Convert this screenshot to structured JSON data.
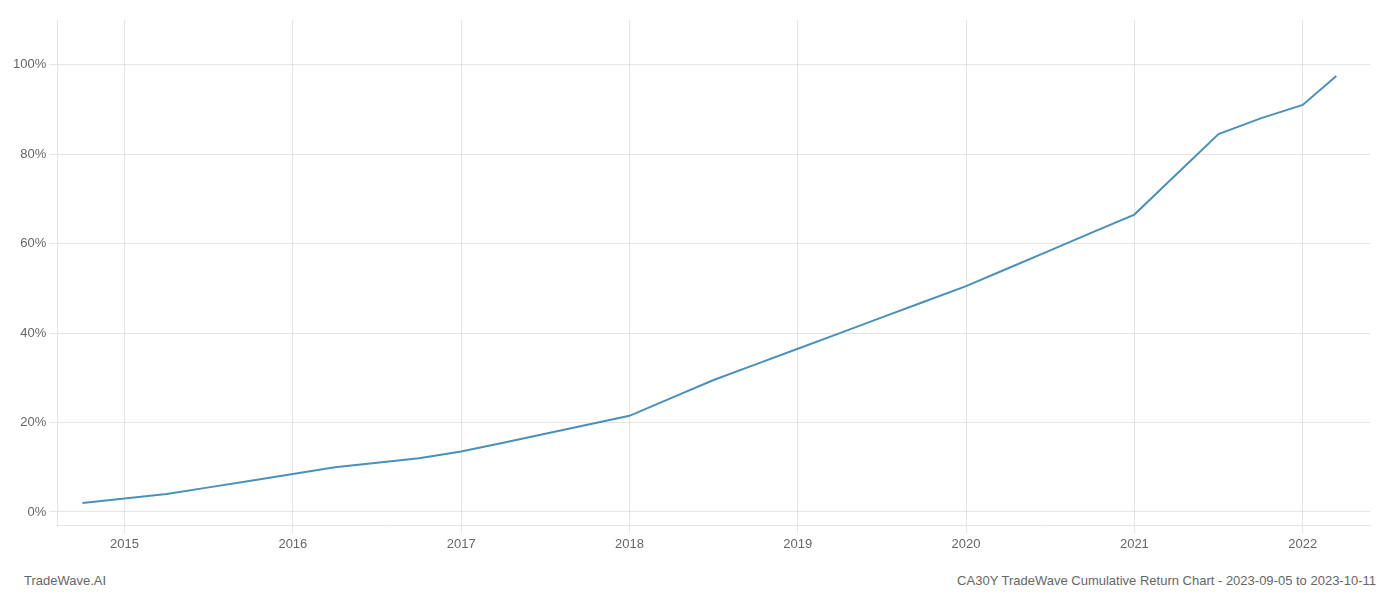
{
  "chart_data": {
    "type": "line",
    "title": "CA30Y TradeWave Cumulative Return Chart - 2023-09-05 to 2023-10-11",
    "annotations": [
      "TradeWave.AI"
    ],
    "x": [
      2014.75,
      2015.0,
      2015.25,
      2015.5,
      2015.75,
      2016.0,
      2016.25,
      2016.5,
      2016.75,
      2017.0,
      2017.25,
      2017.5,
      2017.75,
      2018.0,
      2018.25,
      2018.5,
      2018.75,
      2019.0,
      2019.25,
      2019.5,
      2019.75,
      2020.0,
      2020.25,
      2020.5,
      2020.75,
      2021.0,
      2021.25,
      2021.5,
      2021.75,
      2022.0,
      2022.2
    ],
    "values": [
      0.02,
      0.03,
      0.04,
      0.055,
      0.07,
      0.085,
      0.1,
      0.11,
      0.12,
      0.135,
      0.155,
      0.175,
      0.195,
      0.215,
      0.255,
      0.295,
      0.33,
      0.365,
      0.4,
      0.435,
      0.47,
      0.505,
      0.545,
      0.585,
      0.625,
      0.665,
      0.755,
      0.845,
      0.88,
      0.91,
      0.975
    ],
    "color": "#4a90b8",
    "xlim": [
      2014.6,
      2022.4
    ],
    "xticks": [
      2015,
      2016,
      2017,
      2018,
      2019,
      2020,
      2021,
      2022
    ],
    "ylim": [
      -0.03,
      1.1
    ],
    "yticks": [
      {
        "value": 0.0,
        "label": "0%"
      },
      {
        "value": 0.2,
        "label": "20%"
      },
      {
        "value": 0.4,
        "label": "40%"
      },
      {
        "value": 0.6,
        "label": "60%"
      },
      {
        "value": 0.8,
        "label": "80%"
      },
      {
        "value": 1.0,
        "label": "100%"
      }
    ],
    "grid": true
  }
}
